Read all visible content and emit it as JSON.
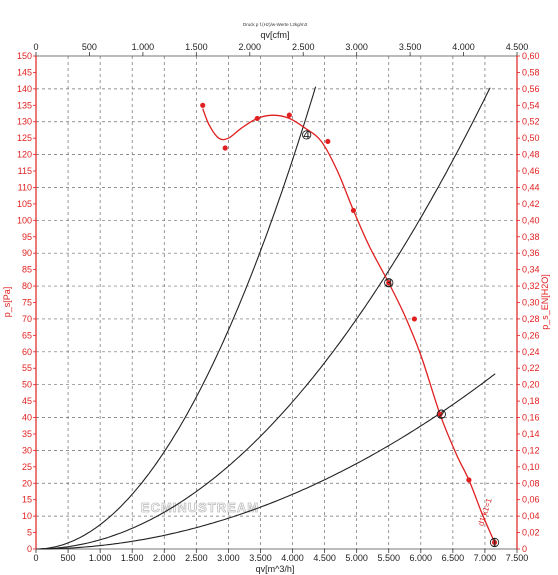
{
  "chart_data": {
    "type": "line",
    "title": "Druck p f.(Hz)/w-Werte t,2kg/m3",
    "x_bottom": {
      "label": "qv[m^3/h]",
      "range": [
        0,
        7500
      ],
      "ticks": [
        0,
        500,
        1000,
        1500,
        2000,
        2500,
        3000,
        3500,
        4000,
        4500,
        5000,
        5500,
        6000,
        6500,
        7000,
        7500
      ],
      "tick_labels": [
        "0",
        "500",
        "1.000",
        "1.500",
        "2.000",
        "2.500",
        "3.000",
        "3.500",
        "4.000",
        "4.500",
        "5.000",
        "5.500",
        "6.000",
        "6.500",
        "7.000",
        "7.500"
      ]
    },
    "x_top": {
      "label": "qv[cfm]",
      "range": [
        0,
        4500
      ],
      "ticks": [
        0,
        500,
        1000,
        1500,
        2000,
        2500,
        3000,
        3500,
        4000,
        4500
      ],
      "tick_labels": [
        "0",
        "500",
        "1.000",
        "1.500",
        "2.000",
        "2.500",
        "3.000",
        "3.500",
        "4.000",
        "4.500"
      ]
    },
    "y_left": {
      "label": "p_s[Pa]",
      "range": [
        0,
        150
      ],
      "step": 5
    },
    "y_right": {
      "label": "p_s_EN[H2O]",
      "range": [
        0,
        0.6
      ],
      "step": 0.02
    },
    "grid": true,
    "fan_curve": {
      "markers": [
        [
          2600,
          135
        ],
        [
          2950,
          122
        ],
        [
          3450,
          131
        ],
        [
          3950,
          132
        ],
        [
          4550,
          124
        ],
        [
          4950,
          103
        ],
        [
          5500,
          81
        ],
        [
          5900,
          70
        ],
        [
          6300,
          41
        ],
        [
          6750,
          21
        ],
        [
          7150,
          2
        ]
      ],
      "curve": [
        [
          2600,
          134
        ],
        [
          2700,
          129
        ],
        [
          2850,
          125
        ],
        [
          3000,
          125
        ],
        [
          3200,
          128
        ],
        [
          3450,
          131
        ],
        [
          3700,
          132
        ],
        [
          3950,
          131
        ],
        [
          4200,
          128
        ],
        [
          4450,
          124
        ],
        [
          4700,
          115
        ],
        [
          4950,
          103
        ],
        [
          5200,
          92
        ],
        [
          5500,
          81
        ],
        [
          5750,
          71
        ],
        [
          6000,
          59
        ],
        [
          6300,
          41
        ],
        [
          6550,
          29
        ],
        [
          6750,
          21
        ],
        [
          6950,
          11
        ],
        [
          7150,
          2
        ]
      ]
    },
    "system_curves": [
      {
        "k": 7.4,
        "x_max": 4380
      },
      {
        "k": 2.8,
        "x_max": 7080
      },
      {
        "k": 1.04,
        "x_max": 7170
      }
    ],
    "operating_points": [
      {
        "label": "4",
        "x": 4220,
        "y": 126
      },
      {
        "label": "3",
        "x": 5500,
        "y": 81
      },
      {
        "label": "2",
        "x": 6320,
        "y": 41
      },
      {
        "label": "1",
        "x": 7150,
        "y": 2
      }
    ],
    "annotation": "d1 k1=1",
    "watermark": "ECMINUSTREAM"
  },
  "colors": {
    "fan_curve": "#e02020",
    "system_curve": "#222222",
    "left_axis": "#e02020",
    "right_axis": "#e02020",
    "grid": "#6f6f6f"
  }
}
